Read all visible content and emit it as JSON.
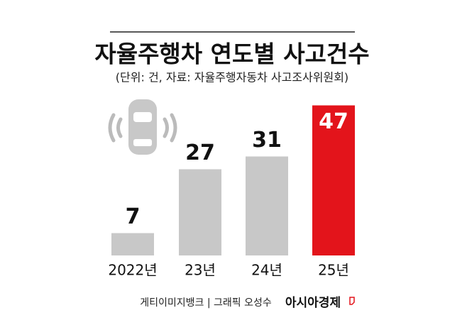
{
  "chart_data": {
    "type": "bar",
    "title": "자율주행차 연도별 사고건수",
    "subtitle": "(단위: 건, 자료: 자율주행자동차 사고조사위원회)",
    "categories": [
      "2022년",
      "23년",
      "24년",
      "25년"
    ],
    "values": [
      7,
      27,
      31,
      47
    ],
    "colors": [
      "#c8c8c8",
      "#c8c8c8",
      "#c8c8c8",
      "#e3141b"
    ],
    "source": "게티이미지뱅크 | 그래픽 오성수",
    "brand": "아시아경제"
  }
}
